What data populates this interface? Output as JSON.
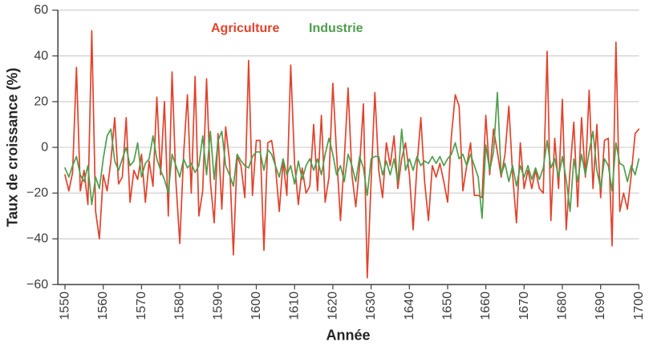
{
  "figure": {
    "y_axis_title": "Taux de croissance (%)",
    "x_axis_title": "Année"
  },
  "chart_data": {
    "type": "line",
    "title": "",
    "xlabel": "Année",
    "ylabel": "Taux de croissance (%)",
    "xlim": [
      1550,
      1700
    ],
    "ylim": [
      -60,
      60
    ],
    "x_ticks": [
      1550,
      1560,
      1570,
      1580,
      1590,
      1600,
      1610,
      1620,
      1630,
      1640,
      1650,
      1660,
      1670,
      1680,
      1690,
      1700
    ],
    "y_ticks": [
      60,
      40,
      20,
      0,
      -20,
      -40,
      -60
    ],
    "grid": true,
    "legend_position": "top-center",
    "x_start": 1550,
    "x_step": 1,
    "colors": {
      "agriculture": "#e1432c",
      "industrie": "#4f9e4d",
      "grid": "#c9c9c9",
      "axis": "#4b4b4b",
      "text": "#3c3c3c"
    },
    "series": [
      {
        "name": "Agriculture",
        "color": "#e1432c",
        "values": [
          -12,
          -19,
          -11,
          35,
          -19,
          -10,
          -25,
          51,
          -28,
          -40,
          -12,
          -19,
          -6,
          13,
          -16,
          -13,
          13,
          -24,
          -10,
          -14,
          -3,
          -24,
          -6,
          -17,
          22,
          -12,
          20,
          -30,
          33,
          -15,
          -42,
          -3,
          23,
          -20,
          31,
          -30,
          -19,
          30,
          -15,
          -33,
          6,
          -27,
          9,
          -6,
          -47,
          -4,
          -8,
          -22,
          38,
          -21,
          3,
          3,
          -45,
          2,
          3,
          -8,
          -28,
          -6,
          -21,
          36,
          -7,
          -25,
          -9,
          -20,
          -17,
          10,
          -19,
          14,
          -24,
          -13,
          28,
          -3,
          -32,
          -5,
          26,
          -12,
          -26,
          -8,
          19,
          -57,
          -15,
          24,
          -10,
          -22,
          2,
          -8,
          5,
          -18,
          -5,
          2,
          -12,
          -36,
          -8,
          13,
          -15,
          -32,
          -8,
          -13,
          -7,
          -15,
          -24,
          5,
          23,
          18,
          -19,
          -8,
          2,
          -21,
          -21,
          -22,
          14,
          -12,
          8,
          -2,
          -13,
          -3,
          18,
          -12,
          -33,
          2,
          -18,
          -10,
          -18,
          -10,
          -18,
          -20,
          42,
          -32,
          4,
          -18,
          21,
          -36,
          -10,
          11,
          -26,
          13,
          -13,
          25,
          -18,
          10,
          -22,
          3,
          4,
          -43,
          46,
          -28,
          -20,
          -27,
          -12,
          6,
          8
        ]
      },
      {
        "name": "Industrie",
        "color": "#4f9e4d",
        "values": [
          -9,
          -13,
          -8,
          -4,
          -12,
          -15,
          -8,
          -25,
          -13,
          -18,
          -5,
          5,
          8,
          -6,
          -10,
          -5,
          0,
          -8,
          -6,
          2,
          -13,
          -7,
          -5,
          5,
          -5,
          -10,
          -14,
          -20,
          -3,
          -8,
          -13,
          -5,
          -9,
          -7,
          -11,
          -8,
          5,
          -12,
          7,
          -14,
          3,
          7,
          -8,
          -12,
          -17,
          -3,
          -6,
          -8,
          -9,
          -4,
          -2,
          -2,
          -10,
          -1,
          -3,
          -8,
          -13,
          -5,
          -12,
          -8,
          -16,
          -6,
          -14,
          -8,
          -5,
          -10,
          -5,
          -12,
          -3,
          4,
          -3,
          -12,
          -8,
          -15,
          -3,
          -8,
          -15,
          -4,
          -9,
          -21,
          -5,
          -4,
          -4,
          -12,
          -6,
          -12,
          -5,
          -15,
          8,
          -10,
          -5,
          -10,
          -4,
          -8,
          -6,
          -7,
          -4,
          -7,
          -4,
          -8,
          -5,
          -3,
          2,
          -5,
          -3,
          -8,
          -3,
          -8,
          -13,
          -31,
          1,
          -10,
          -2,
          24,
          -12,
          -7,
          -15,
          -8,
          -17,
          -8,
          -13,
          -8,
          -14,
          -9,
          -14,
          -9,
          3,
          -9,
          -5,
          -13,
          -4,
          -14,
          -28,
          -5,
          -15,
          -3,
          -12,
          -2,
          7,
          -10,
          -18,
          -5,
          -8,
          -19,
          2,
          -7,
          -8,
          -15,
          -8,
          -12,
          -5
        ]
      }
    ]
  }
}
